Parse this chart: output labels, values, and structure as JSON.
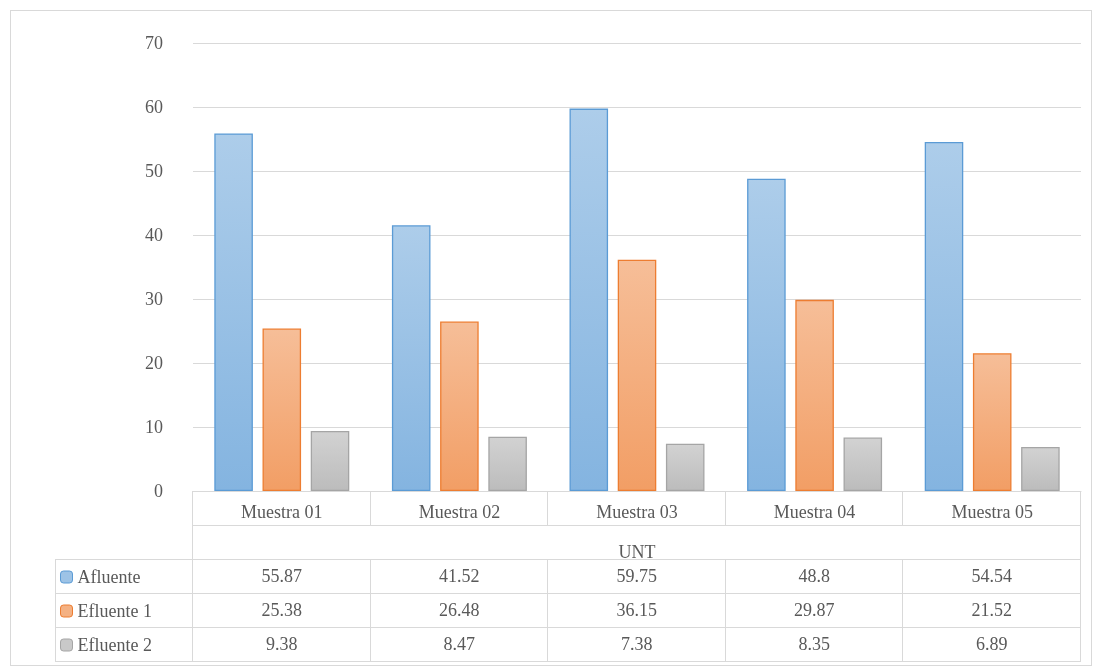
{
  "chart_data": {
    "type": "bar",
    "xlabel": "UNT",
    "categories": [
      "Muestra 01",
      "Muestra 02",
      "Muestra 03",
      "Muestra 04",
      "Muestra 05"
    ],
    "series": [
      {
        "name": "Afluente",
        "color": "#5b9bd5",
        "values": [
          55.87,
          41.52,
          59.75,
          48.8,
          54.54
        ]
      },
      {
        "name": "Efluente 1",
        "color": "#ed7d31",
        "values": [
          25.38,
          26.48,
          36.15,
          29.87,
          21.52
        ]
      },
      {
        "name": "Efluente 2",
        "color": "#a5a5a5",
        "values": [
          9.38,
          8.47,
          7.38,
          8.35,
          6.89
        ]
      }
    ],
    "ylim": [
      0,
      70
    ],
    "yticks": [
      0,
      10,
      20,
      30,
      40,
      50,
      60,
      70
    ],
    "grid": "y",
    "legend": "bottom",
    "data_labels": true
  }
}
